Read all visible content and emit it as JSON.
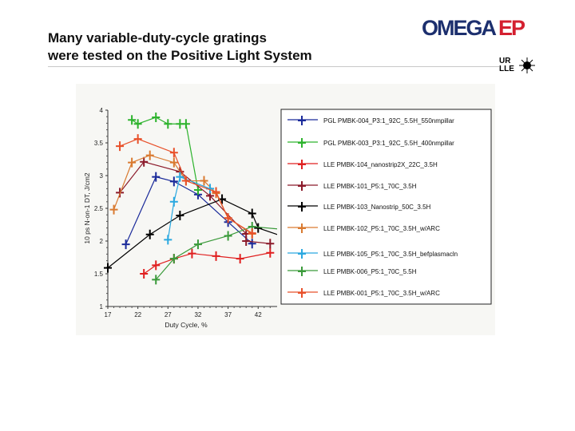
{
  "slide": {
    "title_line1": "Many variable-duty-cycle gratings",
    "title_line2": "were tested on the Positive Light System",
    "logo_omega": "OMEGA",
    "logo_ep": "EP",
    "logo_ur": "UR",
    "logo_lle": "LLE"
  },
  "chart_data": {
    "type": "line",
    "title": "",
    "xlabel": "Duty Cycle, %",
    "ylabel": "10 ps N-on-1 DT, J/cm2",
    "xlim": [
      17,
      45
    ],
    "ylim": [
      1,
      4
    ],
    "xticks": [
      "17",
      "22",
      "27",
      "32",
      "37",
      "42"
    ],
    "yticks": [
      "1",
      "1.5",
      "2",
      "2.5",
      "3",
      "3.5",
      "4"
    ],
    "grid": false,
    "legend_position": "right",
    "series": [
      {
        "name": "PGL PMBK-004_P3:1_92C_5.5H_550nmpillar",
        "color": "#1a2a9a",
        "x": [
          20,
          25,
          28,
          32,
          37,
          41
        ],
        "y": [
          1.95,
          2.98,
          2.91,
          2.71,
          2.29,
          1.96
        ]
      },
      {
        "name": "PGL PMBK-003_P3:1_92C_5.5H_400nmpillar",
        "color": "#2db32d",
        "x": [
          21,
          22,
          25,
          27,
          29,
          30,
          32
        ],
        "y": [
          3.85,
          3.79,
          3.89,
          3.79,
          3.79,
          3.79,
          2.78
        ]
      },
      {
        "name": "LLE PMBK-104_nanostrip2X_22C_3.5H",
        "color": "#e02020",
        "x": [
          23,
          25,
          28,
          31,
          35,
          39,
          44
        ],
        "y": [
          1.5,
          1.63,
          1.73,
          1.81,
          1.77,
          1.73,
          1.82
        ]
      },
      {
        "name": "LLE PMBK-101_P5:1_70C_3.5H",
        "color": "#8b1a2a",
        "x": [
          19,
          23,
          29,
          34,
          40,
          40,
          44
        ],
        "y": [
          2.74,
          3.21,
          3.06,
          2.69,
          2.11,
          2.0,
          1.96
        ]
      },
      {
        "name": "LLE PMBK-103_Nanostrip_50C_3.5H",
        "color": "#000000",
        "x": [
          17,
          24,
          29,
          36,
          41,
          42
        ],
        "y": [
          1.59,
          2.1,
          2.39,
          2.64,
          2.42,
          2.2
        ]
      },
      {
        "name": "LLE PMBK-102_P5:1_70C_3.5H_w/ARC",
        "color": "#d97a30",
        "x": [
          18,
          21,
          24,
          28,
          30,
          33,
          35,
          37,
          41
        ],
        "y": [
          2.48,
          3.2,
          3.31,
          3.2,
          2.92,
          2.92,
          2.73,
          2.35,
          2.11
        ]
      },
      {
        "name": "LLE PMBK-105_P5:1_70C_3.5H_befplasmacln",
        "color": "#2aa8e0",
        "x": [
          27,
          28,
          29,
          34
        ],
        "y": [
          2.02,
          2.6,
          2.98,
          2.8
        ]
      },
      {
        "name": "LLE PMBK-006_P5:1_70C_5.5H",
        "color": "#3a9a3a",
        "x": [
          25,
          28,
          32,
          37,
          41
        ],
        "y": [
          1.41,
          1.73,
          1.95,
          2.08,
          2.22
        ]
      },
      {
        "name": "LLE PMBK-001_P5:1_70C_3.5H_w/ARC",
        "color": "#e8502a",
        "x": [
          19,
          22,
          28,
          30,
          35,
          37,
          41
        ],
        "y": [
          3.45,
          3.56,
          3.35,
          2.92,
          2.75,
          2.35,
          2.12
        ]
      }
    ]
  }
}
